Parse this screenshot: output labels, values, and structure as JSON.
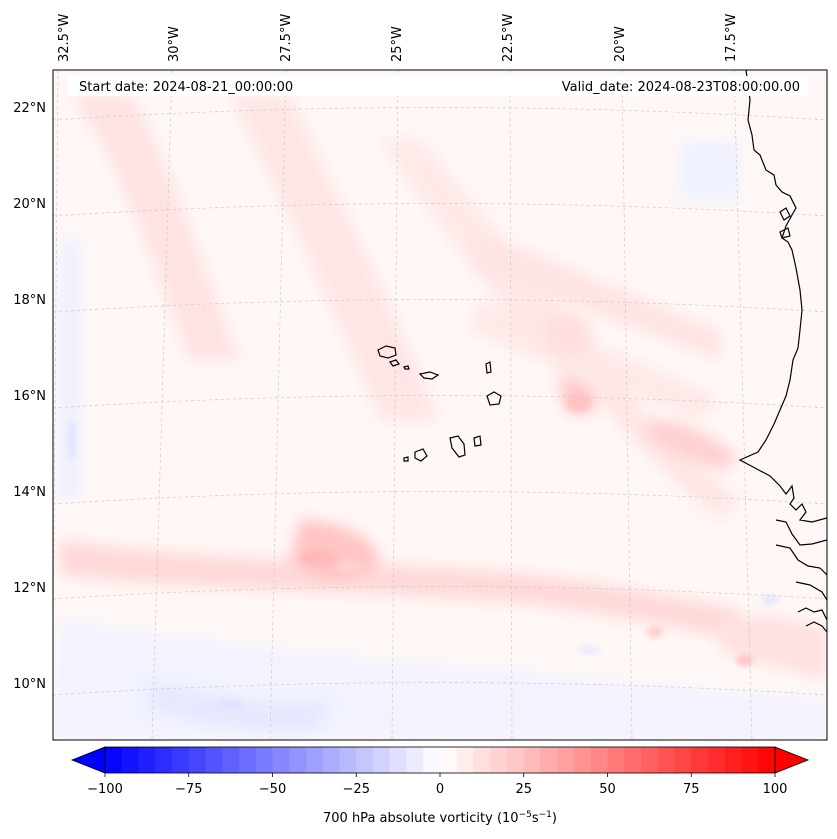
{
  "map": {
    "start_date_label": "Start date: 2024-08-21_00:00:00",
    "valid_date_label": "Valid_date: 2024-08-23T08:00:00.00",
    "longitude_labels": [
      "32.5°W",
      "30°W",
      "27.5°W",
      "25°W",
      "22.5°W",
      "20°W",
      "17.5°W"
    ],
    "latitude_labels": [
      "22°N",
      "20°N",
      "18°N",
      "16°N",
      "14°N",
      "12°N",
      "10°N"
    ],
    "field": "700 hPa absolute vorticity",
    "colors": {
      "coast": "#000000",
      "grid": "#c8c8c8",
      "negative_extreme": "#0000ff",
      "positive_extreme": "#ff0000",
      "neutral": "#ffffff"
    }
  },
  "colorbar": {
    "label_prefix": "700 hPa absolute vorticity (10",
    "label_exp1": "−5",
    "label_mid": "s",
    "label_exp2": "−1",
    "label_suffix": ")",
    "min": -100,
    "max": 100,
    "step": 5,
    "tick_labels": [
      "−100",
      "−75",
      "−50",
      "−25",
      "0",
      "25",
      "50",
      "75",
      "100"
    ]
  }
}
